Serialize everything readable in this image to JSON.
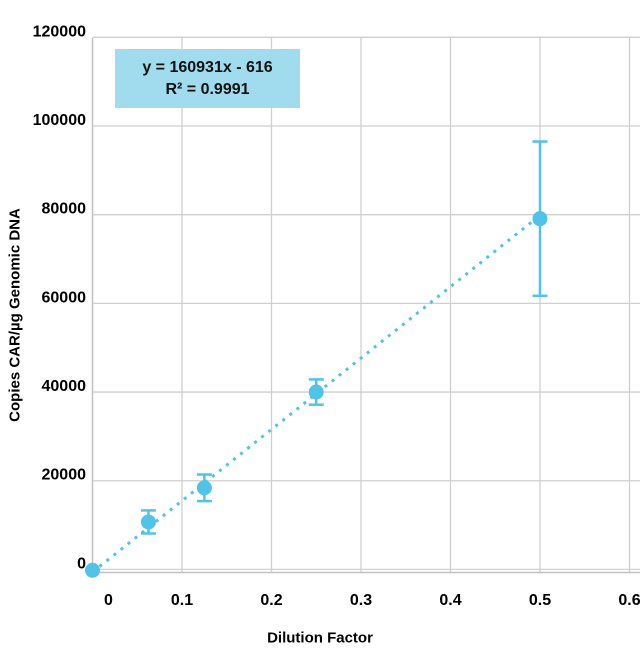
{
  "annotation_box": {
    "line1": "y = 160931x - 616",
    "line2": "R² = 0.9991",
    "fill": "#A0DBEE",
    "text_color": "#111111"
  },
  "colors": {
    "series": "#4FC3E8",
    "grid": "#CFCFCF",
    "axis": "#C2C2C2",
    "tick_text": "#000000",
    "background": "#FFFFFF"
  },
  "chart_data": {
    "type": "scatter",
    "title": "",
    "xlabel": "Dilution Factor",
    "ylabel": "Copies CAR/µg Genomic DNA",
    "x": [
      0,
      0.0625,
      0.125,
      0.25,
      0.5
    ],
    "y": [
      -200,
      10700,
      18400,
      40000,
      79100
    ],
    "y_err": [
      0,
      2600,
      3000,
      2850,
      17400
    ],
    "trendline": {
      "slope": 160931,
      "intercept": -616,
      "r_squared": 0.9991,
      "style": "dotted",
      "x_start": 0,
      "x_end": 0.5
    },
    "x_ticks": [
      0,
      0.1,
      0.2,
      0.3,
      0.4,
      0.5,
      0.6
    ],
    "x_tick_labels": [
      "0",
      "0.1",
      "0.2",
      "0.3",
      "0.4",
      "0.5",
      "0.6"
    ],
    "y_ticks": [
      0,
      20000,
      40000,
      60000,
      80000,
      100000,
      120000
    ],
    "y_tick_labels": [
      "0",
      "20000",
      "40000",
      "60000",
      "80000",
      "100000",
      "120000"
    ],
    "xlim": [
      0,
      0.612
    ],
    "ylim": [
      -800,
      120000
    ],
    "grid": true,
    "legend": false
  }
}
